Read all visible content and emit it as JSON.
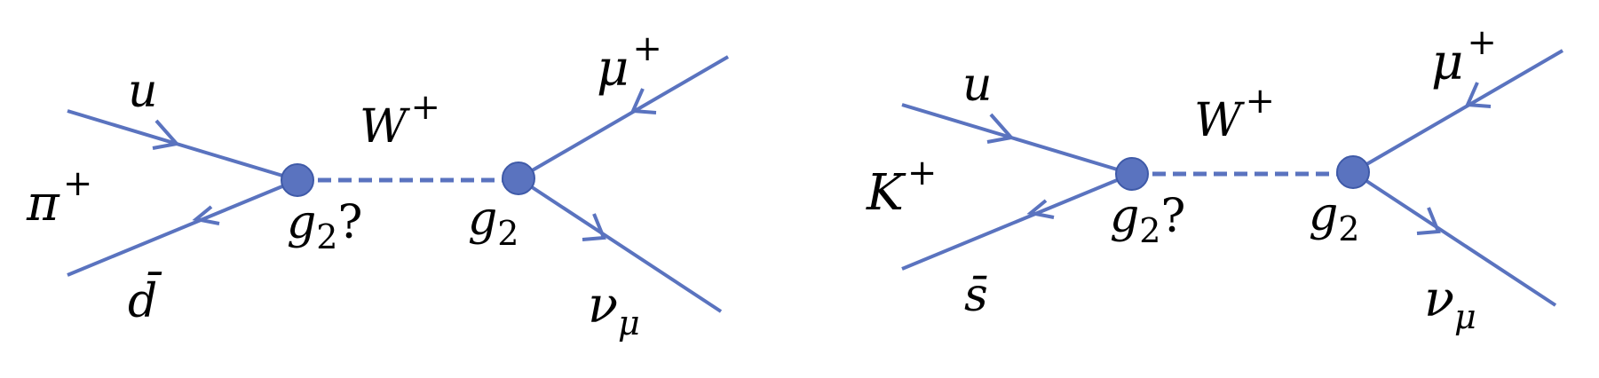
{
  "line_color": "#5a73bf",
  "vertex_color": "#5a73bf",
  "diagrams": [
    {
      "meson": {
        "symbol": "π",
        "charge": "+"
      },
      "quark": "u",
      "antiquark": {
        "base": "d",
        "bar": "̄",
        "display": "d̄"
      },
      "boson": {
        "symbol": "W",
        "charge": "+"
      },
      "vertex_left": {
        "coupling": "g",
        "sub": "2",
        "suffix": "?"
      },
      "vertex_right": {
        "coupling": "g",
        "sub": "2"
      },
      "lepton": {
        "symbol": "μ",
        "charge": "+"
      },
      "neutrino": {
        "symbol": "ν",
        "sub": "μ"
      }
    },
    {
      "meson": {
        "symbol": "K",
        "charge": "+"
      },
      "quark": "u",
      "antiquark": {
        "base": "s",
        "bar": "̄",
        "display": "s̄"
      },
      "boson": {
        "symbol": "W",
        "charge": "+"
      },
      "vertex_left": {
        "coupling": "g",
        "sub": "2",
        "suffix": "?"
      },
      "vertex_right": {
        "coupling": "g",
        "sub": "2"
      },
      "lepton": {
        "symbol": "μ",
        "charge": "+"
      },
      "neutrino": {
        "symbol": "ν",
        "sub": "μ"
      }
    }
  ]
}
